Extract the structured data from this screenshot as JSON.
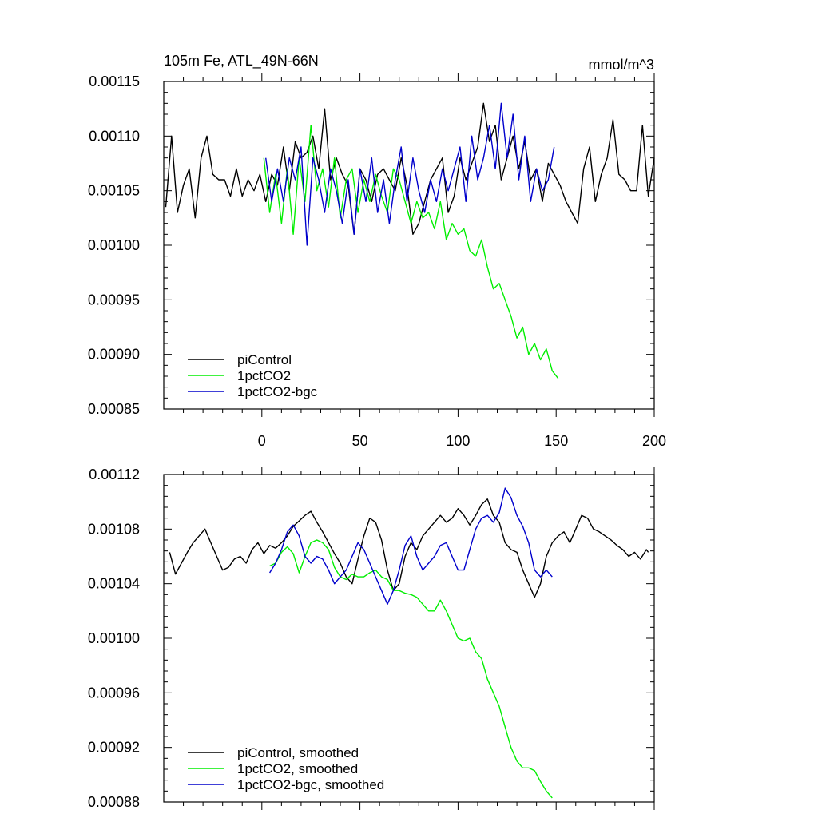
{
  "chart_data": [
    {
      "type": "line",
      "title": "105m Fe, ATL_49N-66N",
      "units": "mmol/m^3",
      "xlim": [
        -50,
        200
      ],
      "ylim": [
        0.00085,
        0.00115
      ],
      "yticks": [
        0.00085,
        0.0009,
        0.00095,
        0.001,
        0.00105,
        0.0011,
        0.00115
      ],
      "ytick_labels": [
        "0.00085",
        "0.00090",
        "0.00095",
        "0.00100",
        "0.00105",
        "0.00110",
        "0.00115"
      ],
      "xticks": [
        0,
        50,
        100,
        150,
        200
      ],
      "xtick_labels": [
        "0",
        "50",
        "100",
        "150",
        "200"
      ],
      "legend": [
        "piControl",
        "1pctCO2",
        "1pctCO2-bgc"
      ],
      "series": [
        {
          "name": "piControl",
          "color": "#000000",
          "x": [
            -49,
            -46,
            -43,
            -40,
            -37,
            -34,
            -31,
            -28,
            -25,
            -22,
            -19,
            -16,
            -13,
            -10,
            -7,
            -4,
            -1,
            2,
            5,
            8,
            11,
            14,
            17,
            20,
            23,
            26,
            29,
            32,
            35,
            38,
            41,
            44,
            47,
            50,
            53,
            56,
            59,
            62,
            65,
            68,
            71,
            74,
            77,
            80,
            83,
            86,
            89,
            92,
            95,
            98,
            101,
            104,
            107,
            110,
            113,
            116,
            119,
            122,
            125,
            128,
            131,
            134,
            137,
            140,
            143,
            146,
            149,
            152,
            155,
            158,
            161,
            164,
            167,
            170,
            173,
            176,
            179,
            182,
            185,
            188,
            191,
            194,
            197,
            200
          ],
          "values": [
            0.001035,
            0.0011,
            0.00103,
            0.001055,
            0.00107,
            0.001025,
            0.00108,
            0.0011,
            0.001065,
            0.00106,
            0.00106,
            0.001045,
            0.00107,
            0.001045,
            0.00106,
            0.00105,
            0.001065,
            0.00104,
            0.001065,
            0.001055,
            0.00109,
            0.00105,
            0.001095,
            0.00108,
            0.001085,
            0.0011,
            0.00107,
            0.001125,
            0.00106,
            0.00108,
            0.001065,
            0.001055,
            0.00101,
            0.00107,
            0.00106,
            0.00104,
            0.001065,
            0.00107,
            0.00106,
            0.00105,
            0.00108,
            0.001055,
            0.00101,
            0.00102,
            0.00104,
            0.00106,
            0.00107,
            0.00108,
            0.00103,
            0.001045,
            0.00108,
            0.00106,
            0.001075,
            0.00109,
            0.00113,
            0.001095,
            0.00111,
            0.00106,
            0.00108,
            0.0011,
            0.00107,
            0.001095,
            0.00106,
            0.00107,
            0.00104,
            0.001075,
            0.001065,
            0.001055,
            0.00104,
            0.00103,
            0.00102,
            0.00107,
            0.00109,
            0.00104,
            0.001065,
            0.00108,
            0.001115,
            0.001065,
            0.00106,
            0.00105,
            0.00105,
            0.00111,
            0.001045,
            0.00108
          ]
        },
        {
          "name": "1pctCO2",
          "color": "#00ee00",
          "x": [
            1,
            4,
            7,
            10,
            13,
            16,
            19,
            22,
            25,
            28,
            31,
            34,
            37,
            40,
            43,
            46,
            49,
            52,
            55,
            58,
            61,
            64,
            67,
            70,
            73,
            76,
            79,
            82,
            85,
            88,
            91,
            94,
            97,
            100,
            103,
            106,
            109,
            112,
            115,
            118,
            121,
            124,
            127,
            130,
            133,
            136,
            139,
            142,
            145,
            148,
            151
          ],
          "values": [
            0.00108,
            0.00103,
            0.001065,
            0.00102,
            0.00107,
            0.00101,
            0.00108,
            0.00104,
            0.00111,
            0.00105,
            0.00107,
            0.001035,
            0.00108,
            0.001025,
            0.00106,
            0.00107,
            0.00103,
            0.00106,
            0.00104,
            0.001065,
            0.001045,
            0.00103,
            0.00107,
            0.00106,
            0.00104,
            0.00102,
            0.00104,
            0.001025,
            0.00103,
            0.001015,
            0.00104,
            0.001005,
            0.00102,
            0.00101,
            0.001015,
            0.000995,
            0.00099,
            0.001005,
            0.00098,
            0.00096,
            0.000965,
            0.00095,
            0.000935,
            0.000915,
            0.000925,
            0.0009,
            0.00091,
            0.000895,
            0.000905,
            0.000885,
            0.000878
          ]
        },
        {
          "name": "1pctCO2-bgc",
          "color": "#0000cc",
          "x": [
            2,
            5,
            8,
            11,
            14,
            17,
            20,
            23,
            26,
            29,
            32,
            35,
            38,
            41,
            44,
            47,
            50,
            53,
            56,
            59,
            62,
            65,
            68,
            71,
            74,
            77,
            80,
            83,
            86,
            89,
            92,
            95,
            98,
            101,
            104,
            107,
            110,
            113,
            116,
            119,
            122,
            125,
            128,
            131,
            134,
            137,
            140,
            143,
            146,
            149
          ],
          "values": [
            0.00108,
            0.00104,
            0.00107,
            0.00104,
            0.00108,
            0.00106,
            0.00109,
            0.001,
            0.00108,
            0.00106,
            0.00103,
            0.00107,
            0.00105,
            0.00102,
            0.00106,
            0.00101,
            0.00107,
            0.00104,
            0.00108,
            0.00103,
            0.00106,
            0.00102,
            0.00106,
            0.00109,
            0.00104,
            0.00108,
            0.00105,
            0.00103,
            0.00106,
            0.00104,
            0.00107,
            0.00105,
            0.00107,
            0.00109,
            0.00104,
            0.0011,
            0.00106,
            0.00108,
            0.00111,
            0.00107,
            0.00113,
            0.00108,
            0.00112,
            0.00106,
            0.0011,
            0.00104,
            0.00107,
            0.00105,
            0.00106,
            0.00109
          ]
        }
      ]
    },
    {
      "type": "line",
      "title": "",
      "xlim": [
        -50,
        200
      ],
      "ylim": [
        0.00088,
        0.00112
      ],
      "yticks": [
        0.00088,
        0.00092,
        0.00096,
        0.001,
        0.00104,
        0.00108,
        0.00112
      ],
      "ytick_labels": [
        "0.00088",
        "0.00092",
        "0.00096",
        "0.00100",
        "0.00104",
        "0.00108",
        "0.00112"
      ],
      "xticks": [
        0,
        50,
        100,
        150,
        200
      ],
      "xtick_labels": [],
      "legend": [
        "piControl, smoothed",
        "1pctCO2, smoothed",
        "1pctCO2-bgc, smoothed"
      ],
      "series": [
        {
          "name": "piControl, smoothed",
          "color": "#000000",
          "x": [
            -47,
            -44,
            -41,
            -38,
            -35,
            -32,
            -29,
            -26,
            -23,
            -20,
            -17,
            -14,
            -11,
            -8,
            -5,
            -2,
            1,
            4,
            7,
            10,
            13,
            16,
            19,
            22,
            25,
            28,
            31,
            34,
            37,
            40,
            43,
            46,
            49,
            52,
            55,
            58,
            61,
            64,
            67,
            70,
            73,
            76,
            79,
            82,
            85,
            88,
            91,
            94,
            97,
            100,
            103,
            106,
            109,
            112,
            115,
            118,
            121,
            124,
            127,
            130,
            133,
            136,
            139,
            142,
            145,
            148,
            151,
            154,
            157,
            160,
            163,
            166,
            169,
            172,
            175,
            178,
            181,
            184,
            187,
            190,
            193,
            196,
            197
          ],
          "values": [
            0.001063,
            0.001047,
            0.001055,
            0.001063,
            0.00107,
            0.001075,
            0.00108,
            0.00107,
            0.00106,
            0.00105,
            0.001052,
            0.001058,
            0.00106,
            0.001055,
            0.001065,
            0.00107,
            0.001062,
            0.001068,
            0.001066,
            0.00107,
            0.001075,
            0.001082,
            0.001086,
            0.00109,
            0.001093,
            0.001085,
            0.001078,
            0.00107,
            0.001062,
            0.001055,
            0.001045,
            0.00104,
            0.001058,
            0.001075,
            0.001088,
            0.001085,
            0.001072,
            0.00105,
            0.001035,
            0.00104,
            0.00106,
            0.00107,
            0.001065,
            0.001075,
            0.00108,
            0.001085,
            0.00109,
            0.001085,
            0.001088,
            0.001095,
            0.00109,
            0.001083,
            0.00109,
            0.001098,
            0.001102,
            0.00109,
            0.001085,
            0.00107,
            0.001065,
            0.001063,
            0.00105,
            0.00104,
            0.00103,
            0.00104,
            0.00106,
            0.00107,
            0.001075,
            0.001078,
            0.00107,
            0.00108,
            0.00109,
            0.001088,
            0.00108,
            0.001078,
            0.001075,
            0.001072,
            0.001068,
            0.001065,
            0.00106,
            0.001063,
            0.001058,
            0.001065,
            0.001063
          ]
        },
        {
          "name": "1pctCO2, smoothed",
          "color": "#00ee00",
          "x": [
            4,
            7,
            10,
            13,
            16,
            19,
            22,
            25,
            28,
            31,
            34,
            37,
            40,
            43,
            46,
            49,
            52,
            55,
            58,
            61,
            64,
            67,
            70,
            73,
            76,
            79,
            82,
            85,
            88,
            91,
            94,
            97,
            100,
            103,
            106,
            109,
            112,
            115,
            118,
            121,
            124,
            127,
            130,
            133,
            136,
            139,
            142,
            145,
            148
          ],
          "values": [
            0.001053,
            0.001055,
            0.001063,
            0.001067,
            0.001062,
            0.001048,
            0.00106,
            0.00107,
            0.001072,
            0.00107,
            0.001065,
            0.001052,
            0.001045,
            0.001043,
            0.001047,
            0.001045,
            0.001045,
            0.001048,
            0.00105,
            0.001045,
            0.001043,
            0.001035,
            0.001035,
            0.001033,
            0.001032,
            0.00103,
            0.001025,
            0.00102,
            0.00102,
            0.001028,
            0.00102,
            0.00101,
            0.001,
            0.000998,
            0.001,
            0.00099,
            0.000985,
            0.00097,
            0.00096,
            0.00095,
            0.000935,
            0.00092,
            0.00091,
            0.000905,
            0.000905,
            0.000903,
            0.000895,
            0.000888,
            0.000883
          ]
        },
        {
          "name": "1pctCO2-bgc, smoothed",
          "color": "#0000cc",
          "x": [
            4,
            7,
            10,
            13,
            16,
            19,
            22,
            25,
            28,
            31,
            34,
            37,
            40,
            43,
            46,
            49,
            52,
            55,
            58,
            61,
            64,
            67,
            70,
            73,
            76,
            79,
            82,
            85,
            88,
            91,
            94,
            97,
            100,
            103,
            106,
            109,
            112,
            115,
            118,
            121,
            124,
            127,
            130,
            133,
            136,
            139,
            142,
            145,
            148
          ],
          "values": [
            0.001048,
            0.001055,
            0.001065,
            0.001078,
            0.001083,
            0.001075,
            0.00106,
            0.001055,
            0.00106,
            0.001058,
            0.00105,
            0.00104,
            0.001045,
            0.00105,
            0.00106,
            0.00107,
            0.001065,
            0.001055,
            0.001045,
            0.001035,
            0.001025,
            0.001035,
            0.00105,
            0.001068,
            0.001075,
            0.00106,
            0.00105,
            0.001055,
            0.00106,
            0.001068,
            0.00107,
            0.00106,
            0.00105,
            0.00105,
            0.001065,
            0.00108,
            0.001088,
            0.00109,
            0.001085,
            0.001092,
            0.00111,
            0.001103,
            0.00109,
            0.001082,
            0.00107,
            0.00105,
            0.001045,
            0.00105,
            0.001045
          ]
        }
      ]
    }
  ]
}
